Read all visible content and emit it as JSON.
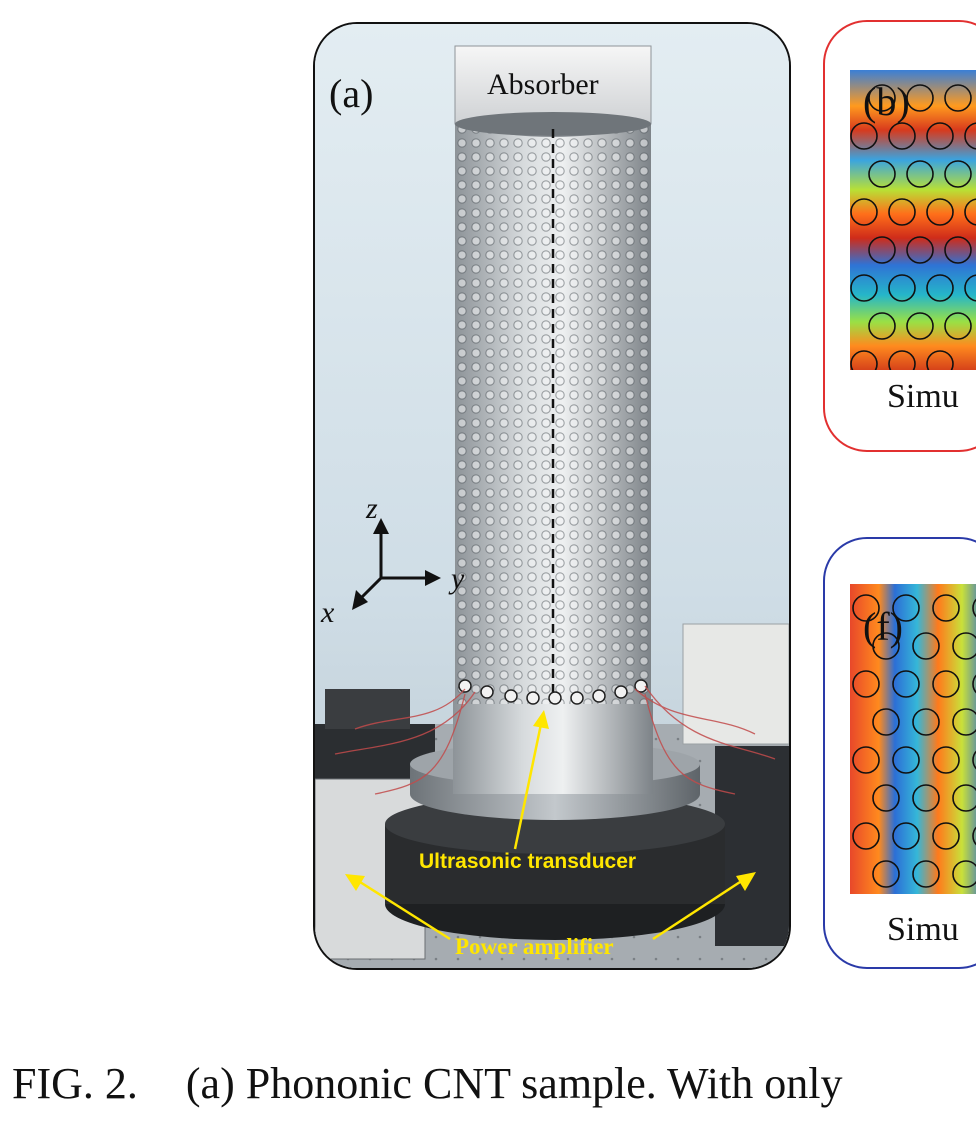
{
  "panel_a": {
    "label": "(a)",
    "absorber": "Absorber",
    "axes": {
      "z": "z",
      "y": "y",
      "x": "x"
    },
    "transducer": "Ultrasonic transducer",
    "amplifier": "Power amplifier"
  },
  "panel_b": {
    "label": "(b)",
    "caption": "Simu"
  },
  "panel_f": {
    "label": "(f)",
    "caption": "Simu"
  },
  "caption": {
    "fig": "FIG. 2.",
    "text": "(a) Phononic CNT sample. With only"
  },
  "colors": {
    "panel_b_border": "#e23030",
    "panel_f_border": "#2a3aa8",
    "annotation": "#ffe600"
  }
}
